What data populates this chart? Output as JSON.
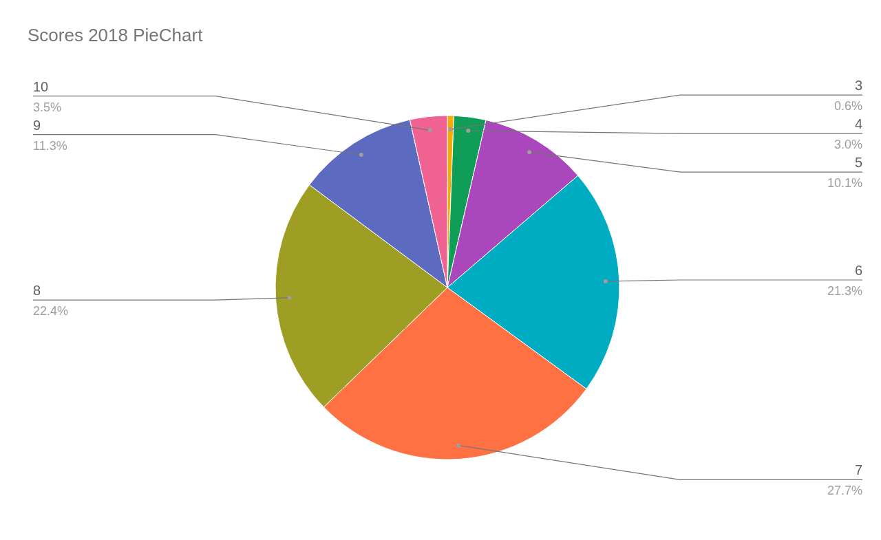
{
  "chart_data": {
    "type": "pie",
    "title": "Scores 2018 PieChart",
    "categories": [
      "3",
      "4",
      "5",
      "6",
      "7",
      "8",
      "9",
      "10"
    ],
    "values": [
      0.6,
      3.0,
      10.1,
      21.3,
      27.7,
      22.4,
      11.3,
      3.5
    ],
    "value_labels": [
      "0.6%",
      "3.0%",
      "10.1%",
      "21.3%",
      "27.7%",
      "22.4%",
      "11.3%",
      "3.5%"
    ],
    "colors": [
      "#f9ab00",
      "#0f9d58",
      "#ab47bc",
      "#00acc1",
      "#ff7043",
      "#9e9d24",
      "#5c6bc0",
      "#f06292"
    ],
    "legend": false
  }
}
